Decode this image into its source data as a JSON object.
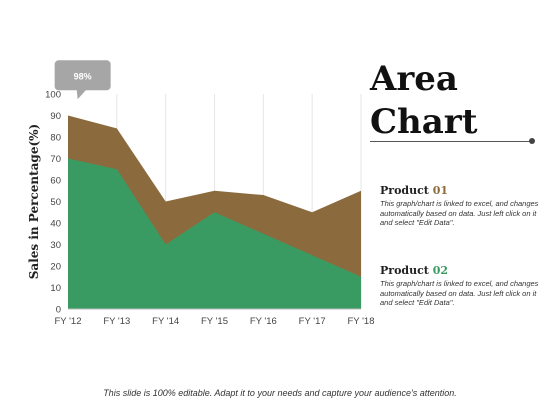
{
  "chart_data": {
    "type": "area",
    "title": "Area Chart",
    "xlabel": "",
    "ylabel": "Sales in Percentage(%)",
    "categories": [
      "FY '12",
      "FY '13",
      "FY '14",
      "FY '15",
      "FY '16",
      "FY '17",
      "FY '18"
    ],
    "ylim": [
      0,
      100
    ],
    "yticks": [
      0,
      10,
      20,
      30,
      40,
      50,
      60,
      70,
      80,
      90,
      100
    ],
    "grid": "vertical",
    "series": [
      {
        "name": "Product 01",
        "values": [
          90,
          84,
          50,
          55,
          53,
          45,
          55
        ],
        "color": "#8B6B3E"
      },
      {
        "name": "Product 02",
        "values": [
          70,
          65,
          30,
          45,
          35,
          25,
          15
        ],
        "color": "#3A9B62"
      }
    ],
    "annotation": {
      "text": "98%",
      "x_index": 0.3,
      "y_value": 98
    }
  },
  "title": {
    "line1": "Area",
    "line2": "Chart"
  },
  "legend": {
    "product1": {
      "word": "Product",
      "num": "01",
      "description": "This graph/chart is linked to excel, and changes automatically based on data. Just left click on it and select \"Edit Data\"."
    },
    "product2": {
      "word": "Product",
      "num": "02",
      "description": "This graph/chart is linked to excel, and changes automatically based on data. Just left click on it and select \"Edit Data\"."
    }
  },
  "footer": "This slide is 100% editable. Adapt it to your needs and capture your audience's attention."
}
